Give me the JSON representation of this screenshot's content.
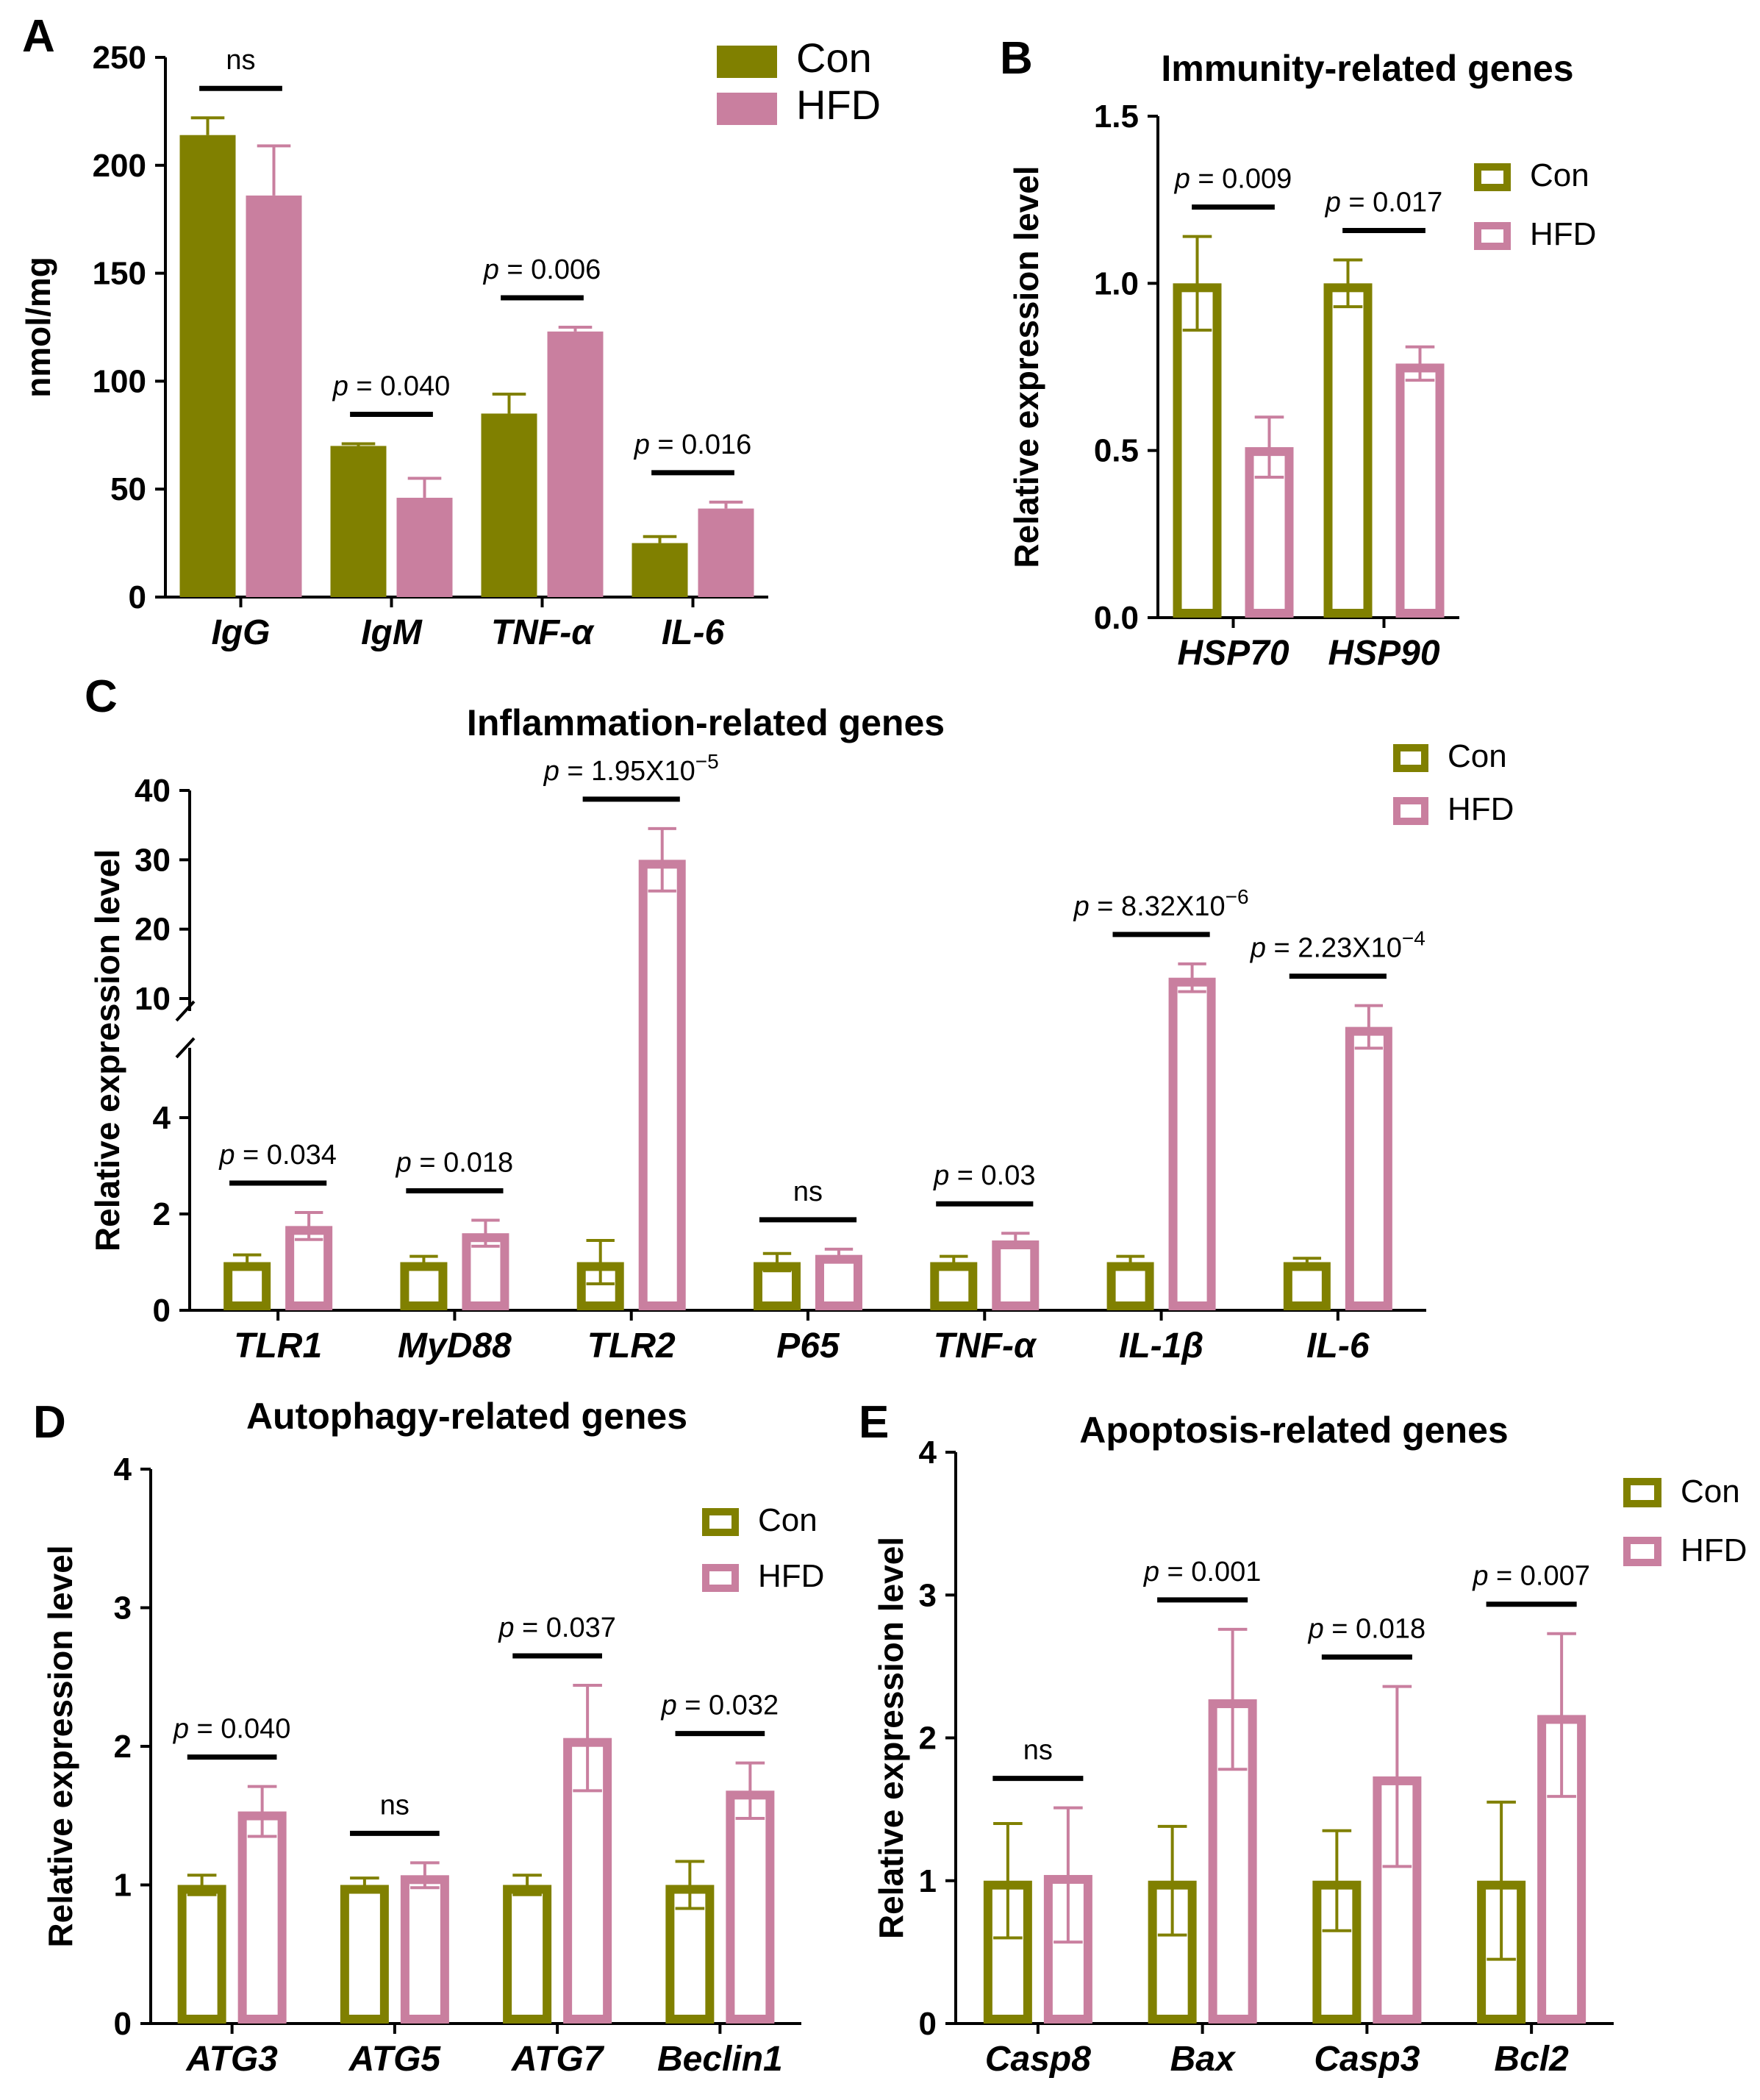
{
  "colors": {
    "con": "#808000",
    "hfd": "#c97f9f",
    "axis": "#000000"
  },
  "chart_data": [
    {
      "panel": "A",
      "type": "bar",
      "title": "",
      "ylabel": "nmol/mg",
      "ylim": [
        0,
        250
      ],
      "yticks": [
        0,
        50,
        100,
        150,
        200,
        250
      ],
      "fill_style": "solid",
      "legend_position": "top-right",
      "categories": [
        "IgG",
        "IgM",
        "TNF-α",
        "IL-6"
      ],
      "series": [
        {
          "name": "Con",
          "values": [
            214,
            70,
            85,
            25
          ],
          "errors": [
            8,
            1,
            9,
            3
          ]
        },
        {
          "name": "HFD",
          "values": [
            186,
            46,
            123,
            41
          ],
          "errors": [
            23,
            9,
            2,
            3
          ]
        }
      ],
      "annotations": [
        {
          "category": "IgG",
          "label": "ns",
          "p_prefix": "",
          "p_value": "",
          "exponent": ""
        },
        {
          "category": "IgM",
          "label": "",
          "p_prefix": "p",
          "p_value": " = 0.040",
          "exponent": ""
        },
        {
          "category": "TNF-α",
          "label": "",
          "p_prefix": "p",
          "p_value": " = 0.006",
          "exponent": ""
        },
        {
          "category": "IL-6",
          "label": "",
          "p_prefix": "p",
          "p_value": " = 0.016",
          "exponent": ""
        }
      ]
    },
    {
      "panel": "B",
      "type": "bar",
      "title": "Immunity-related genes",
      "ylabel": "Relative expression level",
      "ylim": [
        0,
        1.5
      ],
      "yticks": [
        "0.0",
        "0.5",
        "1.0",
        "1.5"
      ],
      "fill_style": "outline",
      "legend_position": "top-right",
      "categories": [
        "HSP70",
        "HSP90"
      ],
      "series": [
        {
          "name": "Con",
          "values": [
            1.0,
            1.0
          ],
          "errors": [
            0.14,
            0.07
          ]
        },
        {
          "name": "HFD",
          "values": [
            0.51,
            0.76
          ],
          "errors": [
            0.09,
            0.05
          ]
        }
      ],
      "annotations": [
        {
          "category": "HSP70",
          "label": "",
          "p_prefix": "p",
          "p_value": " = 0.009",
          "exponent": ""
        },
        {
          "category": "HSP90",
          "label": "",
          "p_prefix": "p",
          "p_value": " = 0.017",
          "exponent": ""
        }
      ]
    },
    {
      "panel": "C",
      "type": "bar",
      "title": "Inflammation-related genes",
      "ylabel": "Relative expression level",
      "ylim": [
        0,
        40
      ],
      "axis_break": [
        5,
        8
      ],
      "yticks": [
        0,
        2,
        4,
        10,
        20,
        30,
        40
      ],
      "fill_style": "outline",
      "legend_position": "top-right",
      "categories": [
        "TLR1",
        "MyD88",
        "TLR2",
        "P65",
        "TNF-α",
        "IL-1β",
        "IL-6"
      ],
      "series": [
        {
          "name": "Con",
          "values": [
            1.0,
            1.0,
            1.0,
            1.0,
            1.0,
            1.0,
            1.0
          ],
          "errors": [
            0.15,
            0.12,
            0.45,
            0.18,
            0.12,
            0.12,
            0.08
          ]
        },
        {
          "name": "HFD",
          "values": [
            1.75,
            1.6,
            30,
            1.15,
            1.45,
            13,
            8
          ],
          "errors": [
            0.28,
            0.27,
            4.5,
            0.12,
            0.15,
            2.0,
            1.5
          ]
        }
      ],
      "annotations": [
        {
          "category": "TLR1",
          "label": "",
          "p_prefix": "p",
          "p_value": " = 0.034",
          "exponent": ""
        },
        {
          "category": "MyD88",
          "label": "",
          "p_prefix": "p",
          "p_value": " = 0.018",
          "exponent": ""
        },
        {
          "category": "TLR2",
          "label": "",
          "p_prefix": "p",
          "p_value": " = 1.95X10",
          "exponent": "−5"
        },
        {
          "category": "P65",
          "label": "ns",
          "p_prefix": "",
          "p_value": "",
          "exponent": ""
        },
        {
          "category": "TNF-α",
          "label": "",
          "p_prefix": "p",
          "p_value": " = 0.03",
          "exponent": ""
        },
        {
          "category": "IL-1β",
          "label": "",
          "p_prefix": "p",
          "p_value": " = 8.32X10",
          "exponent": "−6"
        },
        {
          "category": "IL-6",
          "label": "",
          "p_prefix": "p",
          "p_value": " = 2.23X10",
          "exponent": "−4"
        }
      ]
    },
    {
      "panel": "D",
      "type": "bar",
      "title": "Autophagy-related genes",
      "ylabel": "Relative expression level",
      "ylim": [
        0,
        4
      ],
      "yticks": [
        0,
        1,
        2,
        3,
        4
      ],
      "fill_style": "outline",
      "legend_position": "top-right",
      "categories": [
        "ATG3",
        "ATG5",
        "ATG7",
        "Beclin1"
      ],
      "series": [
        {
          "name": "Con",
          "values": [
            1.0,
            1.0,
            1.0,
            1.0
          ],
          "errors": [
            0.07,
            0.05,
            0.07,
            0.17
          ]
        },
        {
          "name": "HFD",
          "values": [
            1.53,
            1.07,
            2.06,
            1.68
          ],
          "errors": [
            0.18,
            0.09,
            0.38,
            0.2
          ]
        }
      ],
      "annotations": [
        {
          "category": "ATG3",
          "label": "",
          "p_prefix": "p",
          "p_value": " = 0.040",
          "exponent": ""
        },
        {
          "category": "ATG5",
          "label": "ns",
          "p_prefix": "",
          "p_value": "",
          "exponent": ""
        },
        {
          "category": "ATG7",
          "label": "",
          "p_prefix": "p",
          "p_value": " = 0.037",
          "exponent": ""
        },
        {
          "category": "Beclin1",
          "label": "",
          "p_prefix": "p",
          "p_value": " = 0.032",
          "exponent": ""
        }
      ]
    },
    {
      "panel": "E",
      "type": "bar",
      "title": "Apoptosis-related genes",
      "ylabel": "Relative expression level",
      "ylim": [
        0,
        4
      ],
      "yticks": [
        0,
        1,
        2,
        3,
        4
      ],
      "fill_style": "outline",
      "legend_position": "top-right",
      "categories": [
        "Casp8",
        "Bax",
        "Casp3",
        "Bcl2"
      ],
      "series": [
        {
          "name": "Con",
          "values": [
            1.0,
            1.0,
            1.0,
            1.0
          ],
          "errors": [
            0.4,
            0.38,
            0.35,
            0.55
          ]
        },
        {
          "name": "HFD",
          "values": [
            1.04,
            2.27,
            1.73,
            2.16
          ],
          "errors": [
            0.47,
            0.49,
            0.63,
            0.57
          ]
        }
      ],
      "annotations": [
        {
          "category": "Casp8",
          "label": "ns",
          "p_prefix": "",
          "p_value": "",
          "exponent": ""
        },
        {
          "category": "Bax",
          "label": "",
          "p_prefix": "p",
          "p_value": " = 0.001",
          "exponent": ""
        },
        {
          "category": "Casp3",
          "label": "",
          "p_prefix": "p",
          "p_value": " = 0.018",
          "exponent": ""
        },
        {
          "category": "Bcl2",
          "label": "",
          "p_prefix": "p",
          "p_value": " = 0.007",
          "exponent": ""
        }
      ]
    }
  ]
}
